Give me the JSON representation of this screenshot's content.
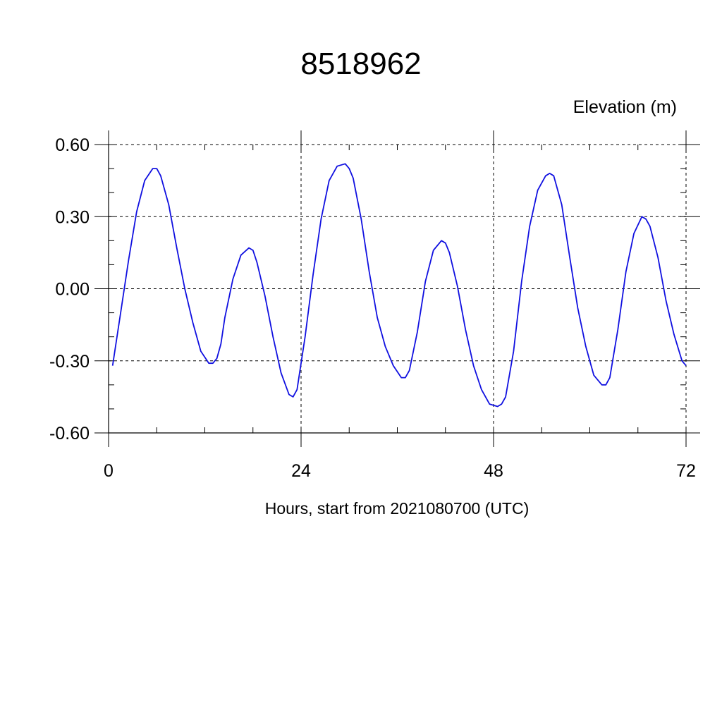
{
  "chart_data": {
    "type": "line",
    "title": "8518962",
    "ylabel": "Elevation (m)",
    "xlabel": "Hours, start from 2021080700 (UTC)",
    "xlim": [
      0,
      72
    ],
    "ylim": [
      -0.6,
      0.6
    ],
    "xticks": [
      0,
      24,
      48,
      72
    ],
    "xtick_labels": [
      "0",
      "24",
      "48",
      "72"
    ],
    "yticks": [
      -0.6,
      -0.3,
      0.0,
      0.3,
      0.6
    ],
    "ytick_labels": [
      "-0.60",
      "-0.30",
      "0.00",
      "0.30",
      "0.60"
    ],
    "grid": true,
    "line_color": "#1010e0",
    "series": [
      {
        "x": [
          0.5,
          1.5,
          2.5,
          3.5,
          4.5,
          5.5,
          6.0,
          6.5,
          7.5,
          8.5,
          9.5,
          10.5,
          11.5,
          12.5,
          13.0,
          13.5,
          14.0,
          14.5,
          15.5,
          16.5,
          17.5,
          18.0,
          18.5,
          19.5,
          20.5,
          21.5,
          22.5,
          23.0,
          23.5,
          24.5,
          25.5,
          26.5,
          27.5,
          28.5,
          29.5,
          30.0,
          30.5,
          31.5,
          32.5,
          33.5,
          34.5,
          35.5,
          36.5,
          37.0,
          37.5,
          38.5,
          39.5,
          40.5,
          41.5,
          42.0,
          42.5,
          43.5,
          44.5,
          45.5,
          46.5,
          47.5,
          48.5,
          49.0,
          49.5,
          50.5,
          51.5,
          52.5,
          53.5,
          54.5,
          55.0,
          55.5,
          56.5,
          57.5,
          58.5,
          59.5,
          60.5,
          61.5,
          62.0,
          62.5,
          63.5,
          64.5,
          65.5,
          66.5,
          67.0,
          67.5,
          68.5,
          69.5,
          70.5,
          71.5,
          72.0
        ],
        "values": [
          -0.32,
          -0.1,
          0.12,
          0.32,
          0.45,
          0.5,
          0.5,
          0.47,
          0.35,
          0.17,
          0.0,
          -0.14,
          -0.26,
          -0.31,
          -0.31,
          -0.29,
          -0.23,
          -0.12,
          0.04,
          0.14,
          0.17,
          0.16,
          0.11,
          -0.03,
          -0.2,
          -0.35,
          -0.44,
          -0.45,
          -0.42,
          -0.2,
          0.06,
          0.29,
          0.45,
          0.51,
          0.52,
          0.5,
          0.46,
          0.29,
          0.07,
          -0.12,
          -0.24,
          -0.32,
          -0.37,
          -0.37,
          -0.34,
          -0.18,
          0.03,
          0.16,
          0.2,
          0.19,
          0.15,
          0.01,
          -0.17,
          -0.32,
          -0.42,
          -0.48,
          -0.49,
          -0.48,
          -0.45,
          -0.26,
          0.03,
          0.26,
          0.41,
          0.47,
          0.48,
          0.47,
          0.35,
          0.13,
          -0.08,
          -0.24,
          -0.36,
          -0.4,
          -0.4,
          -0.37,
          -0.17,
          0.07,
          0.23,
          0.3,
          0.29,
          0.26,
          0.13,
          -0.05,
          -0.19,
          -0.3,
          -0.32
        ]
      }
    ]
  }
}
